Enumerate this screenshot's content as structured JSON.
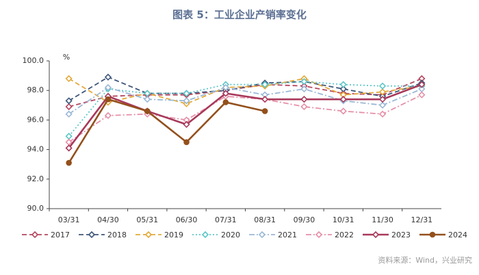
{
  "chart_data": {
    "type": "line",
    "title": "图表 5：工业企业产销率变化",
    "y_label": "%",
    "source": "资料来源：Wind，兴业研究",
    "categories": [
      "03/31",
      "04/30",
      "05/31",
      "06/30",
      "07/31",
      "08/31",
      "09/30",
      "10/31",
      "11/30",
      "12/31"
    ],
    "ylim": [
      90,
      100
    ],
    "yticks": [
      {
        "value": 90,
        "label": "90.0"
      },
      {
        "value": 92,
        "label": "92.0"
      },
      {
        "value": 94,
        "label": "94.0"
      },
      {
        "value": 96,
        "label": "96.0"
      },
      {
        "value": 98,
        "label": "98.0"
      },
      {
        "value": 100,
        "label": "100.0"
      }
    ],
    "grid": false,
    "legend": "bottom",
    "series": [
      {
        "name": "2017",
        "color": "#b5465f",
        "line_style": "dashed",
        "marker": "diamond",
        "values": [
          96.9,
          97.6,
          97.7,
          97.7,
          98.0,
          98.4,
          98.3,
          97.8,
          97.7,
          98.8
        ]
      },
      {
        "name": "2018",
        "color": "#3e5678",
        "line_style": "dashed",
        "marker": "diamond",
        "values": [
          97.3,
          98.9,
          97.8,
          97.8,
          98.0,
          98.5,
          98.6,
          98.1,
          97.6,
          98.5
        ]
      },
      {
        "name": "2019",
        "color": "#e3a93a",
        "line_style": "dashed",
        "marker": "diamond",
        "values": [
          98.8,
          97.2,
          97.8,
          97.1,
          98.2,
          98.3,
          98.8,
          97.7,
          97.9,
          98.3
        ]
      },
      {
        "name": "2020",
        "color": "#5cc6c8",
        "line_style": "dotted",
        "marker": "diamond",
        "values": [
          94.9,
          98.1,
          97.8,
          97.8,
          98.4,
          98.4,
          98.6,
          98.4,
          98.3,
          98.3
        ]
      },
      {
        "name": "2021",
        "color": "#9ab8d6",
        "line_style": "dashdot",
        "marker": "diamond",
        "values": [
          96.4,
          98.2,
          97.4,
          97.3,
          98.2,
          97.7,
          98.1,
          97.3,
          97.0,
          98.1
        ]
      },
      {
        "name": "2022",
        "color": "#e58fa7",
        "line_style": "dashdot",
        "marker": "diamond",
        "values": [
          94.5,
          96.3,
          96.4,
          96.0,
          97.6,
          97.4,
          96.9,
          96.6,
          96.4,
          97.7
        ]
      },
      {
        "name": "2023",
        "color": "#a8385a",
        "line_style": "solid",
        "marker": "diamond",
        "values": [
          94.1,
          97.6,
          96.6,
          95.7,
          97.8,
          97.4,
          97.4,
          97.4,
          97.4,
          98.4
        ]
      },
      {
        "name": "2024",
        "color": "#93501c",
        "line_style": "solid",
        "marker": "circle",
        "values": [
          93.1,
          97.4,
          96.6,
          94.5,
          97.2,
          96.6,
          null,
          null,
          null,
          null
        ]
      }
    ]
  }
}
